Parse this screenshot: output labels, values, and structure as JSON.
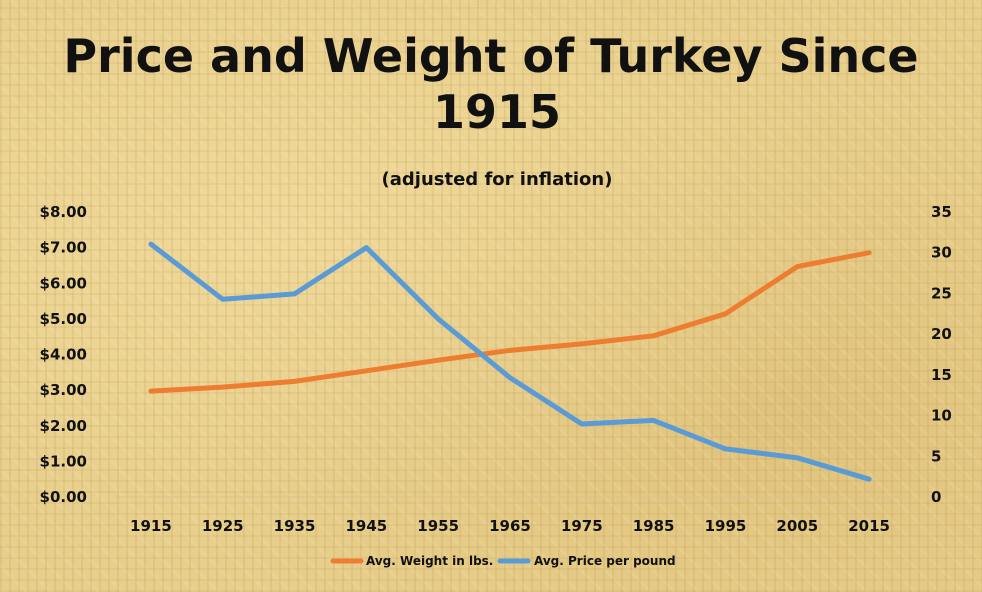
{
  "chart_data": {
    "type": "line",
    "title": "Price and Weight of Turkey Since 1915",
    "subtitle": "(adjusted for inflation)",
    "categories": [
      "1915",
      "1925",
      "1935",
      "1945",
      "1955",
      "1965",
      "1975",
      "1985",
      "1995",
      "2005",
      "2015"
    ],
    "y_left": {
      "min": 0,
      "max": 8,
      "ticks": [
        0,
        1,
        2,
        3,
        4,
        5,
        6,
        7,
        8
      ],
      "tick_labels": [
        "$0.00",
        "$1.00",
        "$2.00",
        "$3.00",
        "$4.00",
        "$5.00",
        "$6.00",
        "$7.00",
        "$8.00"
      ]
    },
    "y_right": {
      "min": 0,
      "max": 35,
      "ticks": [
        0,
        5,
        10,
        15,
        20,
        25,
        30,
        35
      ],
      "tick_labels": [
        "0",
        "5",
        "10",
        "15",
        "20",
        "25",
        "30",
        "35"
      ]
    },
    "series": [
      {
        "name": "Avg. Weight in lbs.",
        "axis": "right",
        "color": "#ed7d31",
        "values": [
          13,
          13.5,
          14.2,
          15.5,
          16.8,
          18,
          18.8,
          19.8,
          22.5,
          28.3,
          30
        ]
      },
      {
        "name": "Avg. Price per pound",
        "axis": "left",
        "color": "#5b9bd5",
        "values": [
          7.1,
          5.55,
          5.7,
          7.0,
          5.0,
          3.35,
          2.05,
          2.15,
          1.35,
          1.1,
          0.5
        ]
      }
    ],
    "legend_position": "bottom-center"
  }
}
